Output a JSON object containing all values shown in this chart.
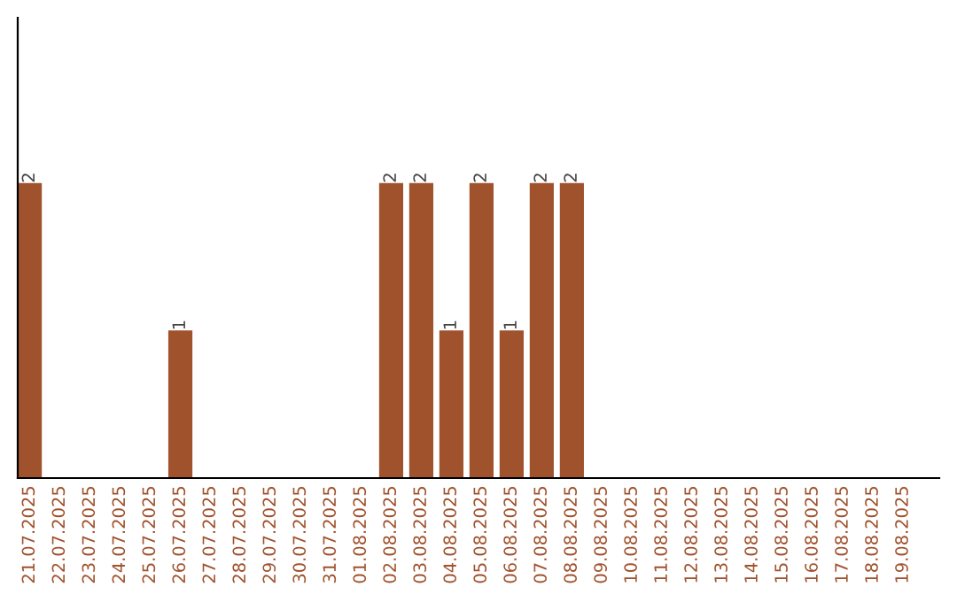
{
  "chart_data": {
    "type": "bar",
    "categories": [
      "21.07.2025",
      "22.07.2025",
      "23.07.2025",
      "24.07.2025",
      "25.07.2025",
      "26.07.2025",
      "27.07.2025",
      "28.07.2025",
      "29.07.2025",
      "30.07.2025",
      "31.07.2025",
      "01.08.2025",
      "02.08.2025",
      "03.08.2025",
      "04.08.2025",
      "05.08.2025",
      "06.08.2025",
      "07.08.2025",
      "08.08.2025",
      "09.08.2025",
      "10.08.2025",
      "11.08.2025",
      "12.08.2025",
      "13.08.2025",
      "14.08.2025",
      "15.08.2025",
      "16.08.2025",
      "17.08.2025",
      "18.08.2025",
      "19.08.2025"
    ],
    "values": [
      2,
      0,
      0,
      0,
      0,
      1,
      0,
      0,
      0,
      0,
      0,
      0,
      2,
      2,
      1,
      2,
      1,
      2,
      2,
      0,
      0,
      0,
      0,
      0,
      0,
      0,
      0,
      0,
      0,
      0
    ],
    "value_labels": [
      "2",
      null,
      null,
      null,
      null,
      "1",
      null,
      null,
      null,
      null,
      null,
      null,
      "2",
      "2",
      "1",
      "2",
      "1",
      "2",
      "2",
      null,
      null,
      null,
      null,
      null,
      null,
      null,
      null,
      null,
      null,
      null
    ],
    "color": "#a0522d",
    "grid": false,
    "legend": false
  }
}
